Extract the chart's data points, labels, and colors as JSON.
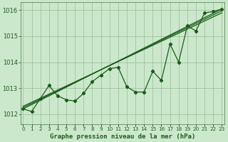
{
  "title": "Graphe pression niveau de la mer (hPa)",
  "xlabel_hours": [
    0,
    1,
    2,
    3,
    4,
    5,
    6,
    7,
    8,
    9,
    10,
    11,
    12,
    13,
    14,
    15,
    16,
    17,
    18,
    19,
    20,
    21,
    22,
    23
  ],
  "pressure_data": [
    1012.2,
    1012.1,
    1012.6,
    1013.1,
    1012.7,
    1012.55,
    1012.5,
    1012.8,
    1013.25,
    1013.5,
    1013.75,
    1013.8,
    1013.05,
    1012.85,
    1012.85,
    1013.65,
    1013.3,
    1014.7,
    1014.0,
    1015.4,
    1015.2,
    1015.9,
    1015.95,
    1016.05
  ],
  "trend_lines": [
    {
      "x": [
        0,
        23
      ],
      "y": [
        1012.2,
        1016.05
      ]
    },
    {
      "x": [
        0,
        23
      ],
      "y": [
        1012.25,
        1015.98
      ]
    },
    {
      "x": [
        0,
        23
      ],
      "y": [
        1012.3,
        1015.9
      ]
    }
  ],
  "ylim": [
    1011.6,
    1016.3
  ],
  "yticks": [
    1012,
    1013,
    1014,
    1015,
    1016
  ],
  "xlim": [
    -0.3,
    23.3
  ],
  "bg_color": "#cce8cc",
  "grid_color": "#99bb99",
  "line_color": "#1a5c1a",
  "spine_color": "#447744",
  "xlabel_fontsize": 5.2,
  "ylabel_fontsize": 6.0,
  "title_fontsize": 6.5,
  "marker": "D",
  "markersize": 2.2,
  "linewidth": 0.9
}
